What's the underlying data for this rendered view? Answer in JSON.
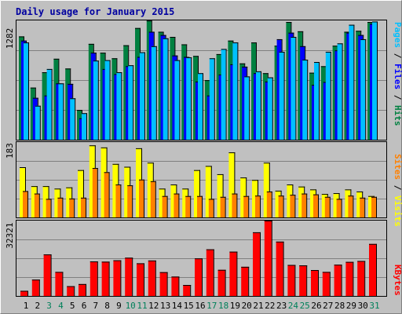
{
  "chart_data": {
    "type": "bar",
    "title": "Daily usage for January 2015",
    "categories": [
      "1",
      "2",
      "3",
      "4",
      "5",
      "6",
      "7",
      "8",
      "9",
      "10",
      "11",
      "12",
      "13",
      "14",
      "15",
      "16",
      "17",
      "18",
      "19",
      "20",
      "21",
      "22",
      "23",
      "24",
      "25",
      "26",
      "27",
      "28",
      "29",
      "30",
      "31"
    ],
    "weekend_days": [
      "3",
      "4",
      "10",
      "11",
      "17",
      "18",
      "24",
      "25",
      "31"
    ],
    "panels": [
      {
        "id": "top",
        "ymax_label": "1282",
        "ylim": [
          0,
          1282
        ],
        "ylabel": [
          "Pages",
          "Files",
          "Hits"
        ],
        "grid": true,
        "series": [
          {
            "name": "Hits",
            "color": "#008040",
            "values": [
              1110,
              560,
              725,
              870,
              765,
              320,
              1030,
              935,
              875,
              1015,
              1200,
              1280,
              1160,
              1105,
              1025,
              900,
              640,
              920,
              1065,
              820,
              1045,
              715,
              1010,
              1265,
              1165,
              720,
              790,
              1010,
              1160,
              1170,
              1265
            ]
          },
          {
            "name": "Files",
            "color": "#0000ff",
            "values": [
              1065,
              450,
              475,
              605,
              600,
              230,
              935,
              760,
              705,
              790,
              890,
              1160,
              1125,
              905,
              890,
              625,
              475,
              700,
              810,
              785,
              715,
              625,
              1080,
              1150,
              1005,
              590,
              620,
              960,
              1150,
              1125,
              1245
            ]
          },
          {
            "name": "Pages",
            "color": "#00c0ff",
            "values": [
              1045,
              365,
              760,
              605,
              445,
              285,
              850,
              855,
              725,
              800,
              940,
              1005,
              1090,
              855,
              885,
              715,
              875,
              975,
              1045,
              680,
              735,
              670,
              945,
              1105,
              860,
              835,
              945,
              1035,
              1235,
              1080,
              1270
            ]
          }
        ]
      },
      {
        "id": "middle",
        "ymax_label": "183",
        "ylim": [
          0,
          183
        ],
        "ylabel": [
          "Sites",
          "Visits"
        ],
        "grid": true,
        "series": [
          {
            "name": "Visits",
            "color": "#ffff00",
            "values": [
              122,
              76,
              76,
              70,
              73,
              115,
              175,
              170,
              130,
              123,
              168,
              133,
              70,
              80,
              70,
              115,
              125,
              105,
              158,
              97,
              91,
              133,
              65,
              80,
              75,
              68,
              57,
              59,
              68,
              63,
              52
            ]
          },
          {
            "name": "Sites",
            "color": "#ff8000",
            "values": [
              64,
              58,
              45,
              48,
              46,
              48,
              120,
              110,
              80,
              78,
              92,
              88,
              52,
              58,
              52,
              52,
              45,
              50,
              58,
              52,
              53,
              63,
              53,
              55,
              58,
              56,
              50,
              45,
              53,
              48,
              50
            ]
          }
        ]
      },
      {
        "id": "bottom",
        "ymax_label": "32321",
        "ylim": [
          0,
          32321
        ],
        "ylabel": [
          "KBytes"
        ],
        "grid": true,
        "series": [
          {
            "name": "KBytes",
            "color": "#ff0000",
            "values": [
              2200,
              7000,
              17800,
              10300,
              4200,
              5100,
              14800,
              14700,
              15300,
              16400,
              14000,
              15200,
              10200,
              8300,
              4700,
              16100,
              20000,
              11200,
              19000,
              12500,
              27300,
              33200,
              23300,
              13300,
              13100,
              11100,
              10300,
              13400,
              14600,
              15000,
              22300
            ]
          }
        ]
      }
    ]
  }
}
